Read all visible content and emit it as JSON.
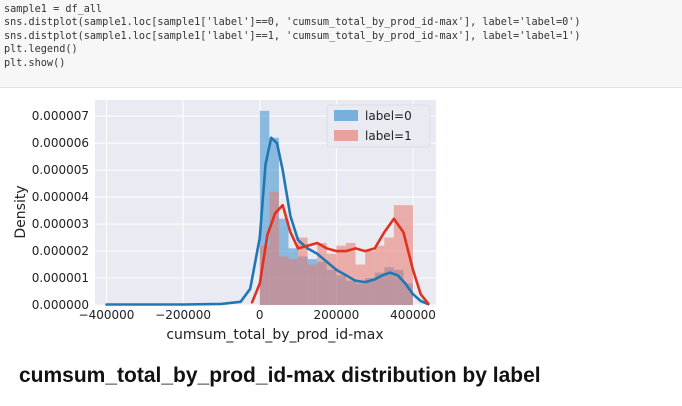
{
  "code": {
    "lines": [
      "sample1 = df_all",
      "sns.distplot(sample1.loc[sample1['label']==0, 'cumsum_total_by_prod_id-max'], label='label=0')",
      "sns.distplot(sample1.loc[sample1['label']==1, 'cumsum_total_by_prod_id-max'], label='label=1')",
      "plt.legend()",
      "plt.show()"
    ]
  },
  "caption": "cumsum_total_by_prod_id-max distribution by label",
  "chart_data": {
    "type": "bar",
    "title": "",
    "xlabel": "cumsum_total_by_prod_id-max",
    "ylabel": "Density",
    "xlim": [
      -430000,
      460000
    ],
    "ylim": [
      0,
      7.6e-06
    ],
    "grid": true,
    "legend_position": "top-right",
    "x_ticks": [
      -400000,
      -200000,
      0,
      200000,
      400000
    ],
    "x_tick_labels": [
      "−400000",
      "−200000",
      "0",
      "200000",
      "400000"
    ],
    "y_ticks": [
      0,
      1e-06,
      2e-06,
      3e-06,
      4e-06,
      5e-06,
      6e-06,
      7e-06
    ],
    "y_tick_labels": [
      "0.000000",
      "0.000001",
      "0.000002",
      "0.000003",
      "0.000004",
      "0.000005",
      "0.000006",
      "0.000007"
    ],
    "bin_edges": [
      0,
      25000,
      50000,
      75000,
      100000,
      125000,
      150000,
      175000,
      200000,
      225000,
      250000,
      275000,
      300000,
      325000,
      350000,
      375000,
      400000
    ],
    "series": [
      {
        "name": "label=0",
        "color": "#3b8fd0",
        "line_color": "#1f77b4",
        "hist": [
          7.2e-06,
          6.2e-06,
          3.2e-06,
          2.1e-06,
          1.8e-06,
          1.7e-06,
          1.6e-06,
          1.3e-06,
          1.1e-06,
          9e-07,
          8e-07,
          1e-06,
          1.2e-06,
          1.4e-06,
          1.3e-06,
          8e-07
        ],
        "kde_x": [
          -400000,
          -300000,
          -200000,
          -100000,
          -50000,
          -25000,
          0,
          15000,
          30000,
          45000,
          60000,
          80000,
          100000,
          125000,
          150000,
          175000,
          200000,
          225000,
          250000,
          275000,
          300000,
          320000,
          340000,
          360000,
          380000,
          400000,
          420000,
          440000
        ],
        "kde_y": [
          2e-08,
          2e-08,
          2e-08,
          4e-08,
          1.2e-07,
          6e-07,
          2.5e-06,
          5.2e-06,
          6.2e-06,
          6e-06,
          5e-06,
          3.3e-06,
          2.4e-06,
          2.1e-06,
          1.9e-06,
          1.6e-06,
          1.3e-06,
          1.1e-06,
          9e-07,
          8.5e-07,
          9.5e-07,
          1.1e-06,
          1.2e-06,
          1.1e-06,
          8e-07,
          4e-07,
          1.5e-07,
          3e-08
        ]
      },
      {
        "name": "label=1",
        "color": "#e8796c",
        "line_color": "#e0321f",
        "hist": [
          2.2e-06,
          4.2e-06,
          1.8e-06,
          1.7e-06,
          2.5e-06,
          1.5e-06,
          2.3e-06,
          1.9e-06,
          2.2e-06,
          2.3e-06,
          1.5e-06,
          2e-06,
          2.2e-06,
          2.5e-06,
          3.7e-06,
          3.7e-06
        ],
        "kde_x": [
          -20000,
          0,
          20000,
          40000,
          60000,
          80000,
          100000,
          125000,
          150000,
          175000,
          200000,
          225000,
          250000,
          275000,
          300000,
          325000,
          350000,
          375000,
          400000,
          420000,
          440000
        ],
        "kde_y": [
          1e-07,
          8e-07,
          2.6e-06,
          3.4e-06,
          3.7e-06,
          2.7e-06,
          2.1e-06,
          2.2e-06,
          2.3e-06,
          2.1e-06,
          2e-06,
          2e-06,
          2.1e-06,
          2e-06,
          2.1e-06,
          2.7e-06,
          3.2e-06,
          2.7e-06,
          1.3e-06,
          4e-07,
          5e-08
        ]
      }
    ]
  }
}
